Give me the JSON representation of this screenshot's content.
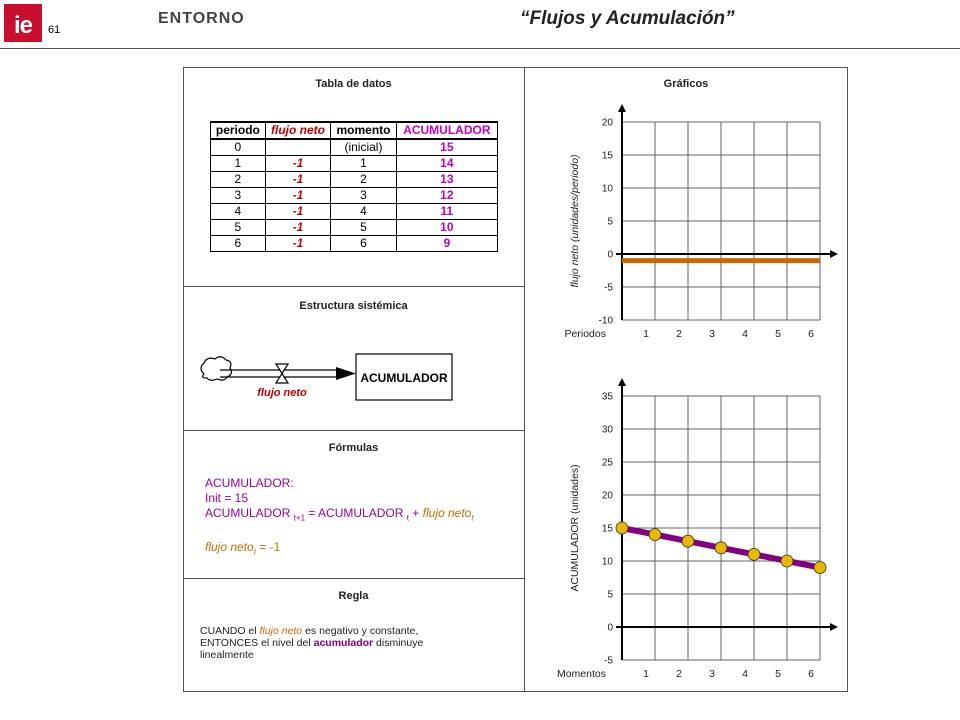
{
  "header": {
    "logo_text": "ie",
    "slide_number": "61",
    "section": "ENTORNO",
    "title": "“Flujos y Acumulación”"
  },
  "tabla": {
    "title": "Tabla de datos",
    "headers": [
      "periodo",
      "flujo neto",
      "momento",
      "ACUMULADOR"
    ],
    "rows": [
      [
        "0",
        "",
        "(inicial)",
        "15"
      ],
      [
        "1",
        "-1",
        "1",
        "14"
      ],
      [
        "2",
        "-1",
        "2",
        "13"
      ],
      [
        "3",
        "-1",
        "3",
        "12"
      ],
      [
        "4",
        "-1",
        "4",
        "11"
      ],
      [
        "5",
        "-1",
        "5",
        "10"
      ],
      [
        "6",
        "-1",
        "6",
        "9"
      ]
    ]
  },
  "estructura": {
    "title": "Estructura sistémica",
    "stock_label": "ACUMULADOR",
    "flow_label": "flujo neto"
  },
  "formulas": {
    "title": "Fórmulas",
    "line1": "ACUMULADOR:",
    "line2": "Init = 15",
    "line3_a": "ACUMULADOR ",
    "line3_sub1": "t+1",
    "line3_b": " = ACUMULADOR ",
    "line3_sub2": "t",
    "line3_c": " + ",
    "line3_d": "flujo neto",
    "line3_sub3": "t",
    "line4_a": "flujo neto",
    "line4_sub": "t",
    "line4_b": " = -1"
  },
  "regla": {
    "title": "Regla",
    "p1": "CUANDO el ",
    "p2": "flujo neto",
    "p3": " es negativo y constante,",
    "p4": "ENTONCES el nivel del ",
    "p5": "acumulador",
    "p6": " disminuye",
    "p7": "linealmente"
  },
  "graficos": {
    "title": "Gráficos"
  },
  "chart_data": [
    {
      "type": "line",
      "title": "",
      "xlabel": "Periodos",
      "ylabel": "flujo neto (unidades/periodo)",
      "x": [
        0,
        1,
        2,
        3,
        4,
        5,
        6
      ],
      "x_tick_labels": [
        "1",
        "2",
        "3",
        "4",
        "5",
        "6"
      ],
      "ylim": [
        -10,
        20
      ],
      "y_ticks": [
        -10,
        -5,
        0,
        5,
        10,
        15,
        20
      ],
      "series": [
        {
          "values": [
            -1,
            -1,
            -1,
            -1,
            -1,
            -1,
            -1
          ],
          "color": "#cc6600"
        }
      ],
      "grid": true
    },
    {
      "type": "line",
      "title": "",
      "xlabel": "Momentos",
      "ylabel": "ACUMULADOR (unidades)",
      "x": [
        0,
        1,
        2,
        3,
        4,
        5,
        6
      ],
      "x_tick_labels": [
        "1",
        "2",
        "3",
        "4",
        "5",
        "6"
      ],
      "ylim": [
        -5,
        35
      ],
      "y_ticks": [
        -5,
        0,
        5,
        10,
        15,
        20,
        25,
        30,
        35
      ],
      "series": [
        {
          "values": [
            15,
            14,
            13,
            12,
            11,
            10,
            9
          ],
          "color": "#800080",
          "marker_color": "#e6b800"
        }
      ],
      "grid": true
    }
  ]
}
